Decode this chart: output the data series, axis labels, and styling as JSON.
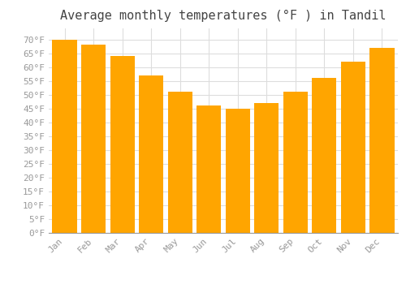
{
  "months": [
    "Jan",
    "Feb",
    "Mar",
    "Apr",
    "May",
    "Jun",
    "Jul",
    "Aug",
    "Sep",
    "Oct",
    "Nov",
    "Dec"
  ],
  "values": [
    70,
    68,
    64,
    57,
    51,
    46,
    45,
    47,
    51,
    56,
    62,
    67
  ],
  "bar_color": "#FFA500",
  "bar_edge_color": "#FFA500",
  "background_color": "#FFFFFF",
  "grid_color": "#DDDDDD",
  "title": "Average monthly temperatures (°F ) in Tandil",
  "title_fontsize": 11,
  "title_font": "monospace",
  "yticks": [
    0,
    5,
    10,
    15,
    20,
    25,
    30,
    35,
    40,
    45,
    50,
    55,
    60,
    65,
    70
  ],
  "ylim": [
    0,
    74
  ],
  "tick_font": "monospace",
  "tick_color": "#999999",
  "axis_label_fontsize": 8,
  "title_color": "#444444"
}
